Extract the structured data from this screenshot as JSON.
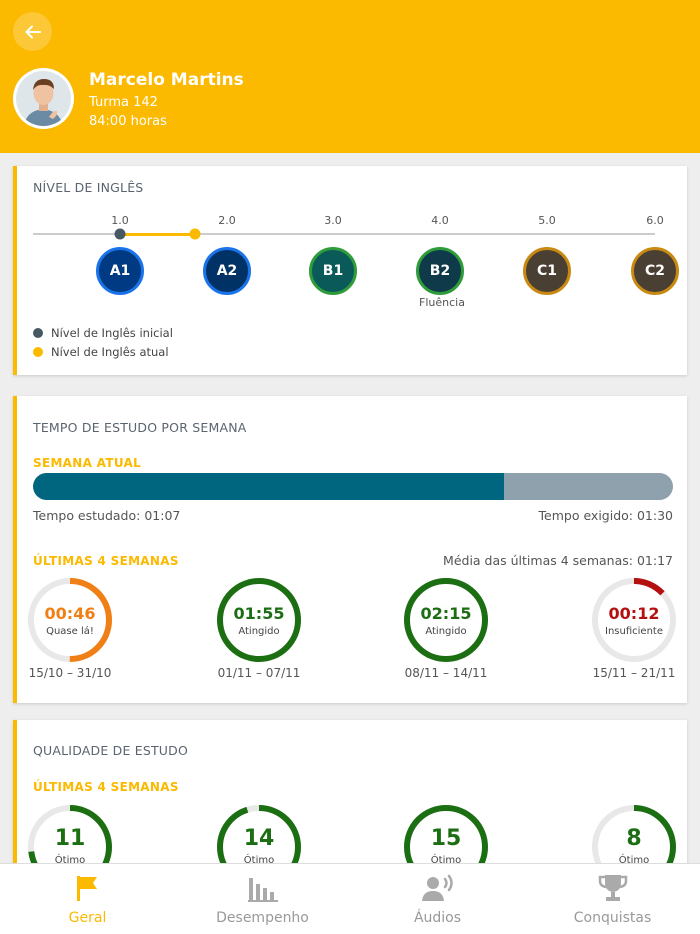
{
  "profile": {
    "name": "Marcelo Martins",
    "class": "Turma 142",
    "hours": "84:00 horas"
  },
  "colors": {
    "accent": "#fbb900",
    "bar_fill": "#00657f",
    "bar_track": "#8fa1ad",
    "good": "#1c6e12",
    "warning": "#f07f15",
    "bad": "#b51010",
    "initial_dot": "#485863"
  },
  "english_level": {
    "title": "NÍVEL DE INGLÊS",
    "ticks": [
      "1.0",
      "2.0",
      "3.0",
      "4.0",
      "5.0",
      "6.0"
    ],
    "initial_value": 1.0,
    "current_value": 1.7,
    "levels": [
      {
        "label": "A1",
        "fill": "#003a82",
        "border": "#1a73e8"
      },
      {
        "label": "A2",
        "fill": "#003266",
        "border": "#1a73e8"
      },
      {
        "label": "B1",
        "fill": "#0a5a5a",
        "border": "#2e9c3a"
      },
      {
        "label": "B2",
        "fill": "#0e3a4a",
        "border": "#2e9c3a"
      },
      {
        "label": "C1",
        "fill": "#4a3f33",
        "border": "#c98a12"
      },
      {
        "label": "C2",
        "fill": "#4a3f33",
        "border": "#c98a12"
      }
    ],
    "fluency_label": "Fluência",
    "legend_initial": "Nível de Inglês inicial",
    "legend_current": "Nível de Inglês atual"
  },
  "study_time": {
    "title": "TEMPO DE ESTUDO POR SEMANA",
    "current_week_label": "SEMANA ATUAL",
    "progress_fraction": 0.736,
    "studied": "Tempo estudado: 01:07",
    "required": "Tempo exigido: 01:30",
    "last4_label": "ÚLTIMAS 4 SEMANAS",
    "average": "Média das últimas 4 semanas: 01:17",
    "weeks": [
      {
        "value": "00:46",
        "status": "Quase lá!",
        "dates": "15/10 – 31/10",
        "fraction": 0.5,
        "color": "#f07f15"
      },
      {
        "value": "01:55",
        "status": "Atingido",
        "dates": "01/11 – 07/11",
        "fraction": 1.0,
        "color": "#1c6e12"
      },
      {
        "value": "02:15",
        "status": "Atingido",
        "dates": "08/11 – 14/11",
        "fraction": 1.0,
        "color": "#1c6e12"
      },
      {
        "value": "00:12",
        "status": "Insuficiente",
        "dates": "15/11 – 21/11",
        "fraction": 0.13,
        "color": "#b51010"
      }
    ]
  },
  "study_quality": {
    "title": "QUALIDADE DE ESTUDO",
    "last4_label": "ÚLTIMAS 4 SEMANAS",
    "weeks": [
      {
        "value": "11",
        "status": "Ótimo",
        "fraction": 0.73
      },
      {
        "value": "14",
        "status": "Ótimo",
        "fraction": 0.95
      },
      {
        "value": "15",
        "status": "Ótimo",
        "fraction": 1.0
      },
      {
        "value": "8",
        "status": "Ótimo",
        "fraction": 0.55
      }
    ]
  },
  "nav": {
    "items": [
      {
        "label": "Geral",
        "active": true
      },
      {
        "label": "Desempenho",
        "active": false
      },
      {
        "label": "Áudios",
        "active": false
      },
      {
        "label": "Conquistas",
        "active": false
      }
    ]
  }
}
